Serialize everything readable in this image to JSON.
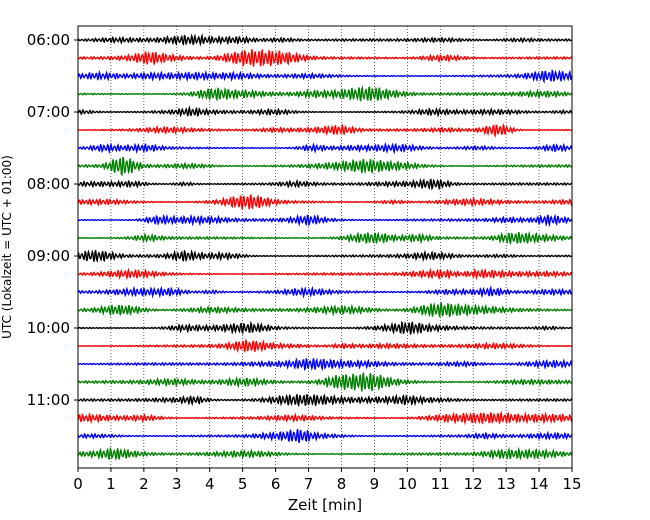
{
  "chart_data": {
    "type": "line",
    "title": "",
    "xlabel": "Zeit  [min]",
    "ylabel": "UTC (Lokalzeit = UTC + 01:00)",
    "xlim": [
      0,
      15
    ],
    "x_ticks": [
      0,
      1,
      2,
      3,
      4,
      5,
      6,
      7,
      8,
      9,
      10,
      11,
      12,
      13,
      14,
      15
    ],
    "x_tick_labels": [
      "0",
      "1",
      "2",
      "3",
      "4",
      "5",
      "6",
      "7",
      "8",
      "9",
      "10",
      "11",
      "12",
      "13",
      "14",
      "15"
    ],
    "grid": "vertical dotted",
    "trace_interval_min": 15,
    "start_utc": "06:00",
    "y_tick_labels": [
      "06:00",
      "07:00",
      "08:00",
      "09:00",
      "10:00",
      "11:00"
    ],
    "series_colors": [
      "#000000",
      "#ff0000",
      "#0000ff",
      "#008000"
    ],
    "series": [
      {
        "utc": "06:00",
        "color": "#000000",
        "amplitude": 0.22
      },
      {
        "utc": "06:15",
        "color": "#ff0000",
        "amplitude": 0.22
      },
      {
        "utc": "06:30",
        "color": "#0000ff",
        "amplitude": 0.22
      },
      {
        "utc": "06:45",
        "color": "#008000",
        "amplitude": 0.24
      },
      {
        "utc": "07:00",
        "color": "#000000",
        "amplitude": 0.22
      },
      {
        "utc": "07:15",
        "color": "#ff0000",
        "amplitude": 0.22
      },
      {
        "utc": "07:30",
        "color": "#0000ff",
        "amplitude": 0.22
      },
      {
        "utc": "07:45",
        "color": "#008000",
        "amplitude": 0.24
      },
      {
        "utc": "08:00",
        "color": "#000000",
        "amplitude": 0.22
      },
      {
        "utc": "08:15",
        "color": "#ff0000",
        "amplitude": 0.22
      },
      {
        "utc": "08:30",
        "color": "#0000ff",
        "amplitude": 0.22
      },
      {
        "utc": "08:45",
        "color": "#008000",
        "amplitude": 0.22
      },
      {
        "utc": "09:00",
        "color": "#000000",
        "amplitude": 0.22
      },
      {
        "utc": "09:15",
        "color": "#ff0000",
        "amplitude": 0.22
      },
      {
        "utc": "09:30",
        "color": "#0000ff",
        "amplitude": 0.22
      },
      {
        "utc": "09:45",
        "color": "#008000",
        "amplitude": 0.24
      },
      {
        "utc": "10:00",
        "color": "#000000",
        "amplitude": 0.22
      },
      {
        "utc": "10:15",
        "color": "#ff0000",
        "amplitude": 0.22
      },
      {
        "utc": "10:30",
        "color": "#0000ff",
        "amplitude": 0.24
      },
      {
        "utc": "10:45",
        "color": "#008000",
        "amplitude": 0.28
      },
      {
        "utc": "11:00",
        "color": "#000000",
        "amplitude": 0.22
      },
      {
        "utc": "11:15",
        "color": "#ff0000",
        "amplitude": 0.26
      },
      {
        "utc": "11:30",
        "color": "#0000ff",
        "amplitude": 0.22
      },
      {
        "utc": "11:45",
        "color": "#008000",
        "amplitude": 0.22
      }
    ]
  }
}
